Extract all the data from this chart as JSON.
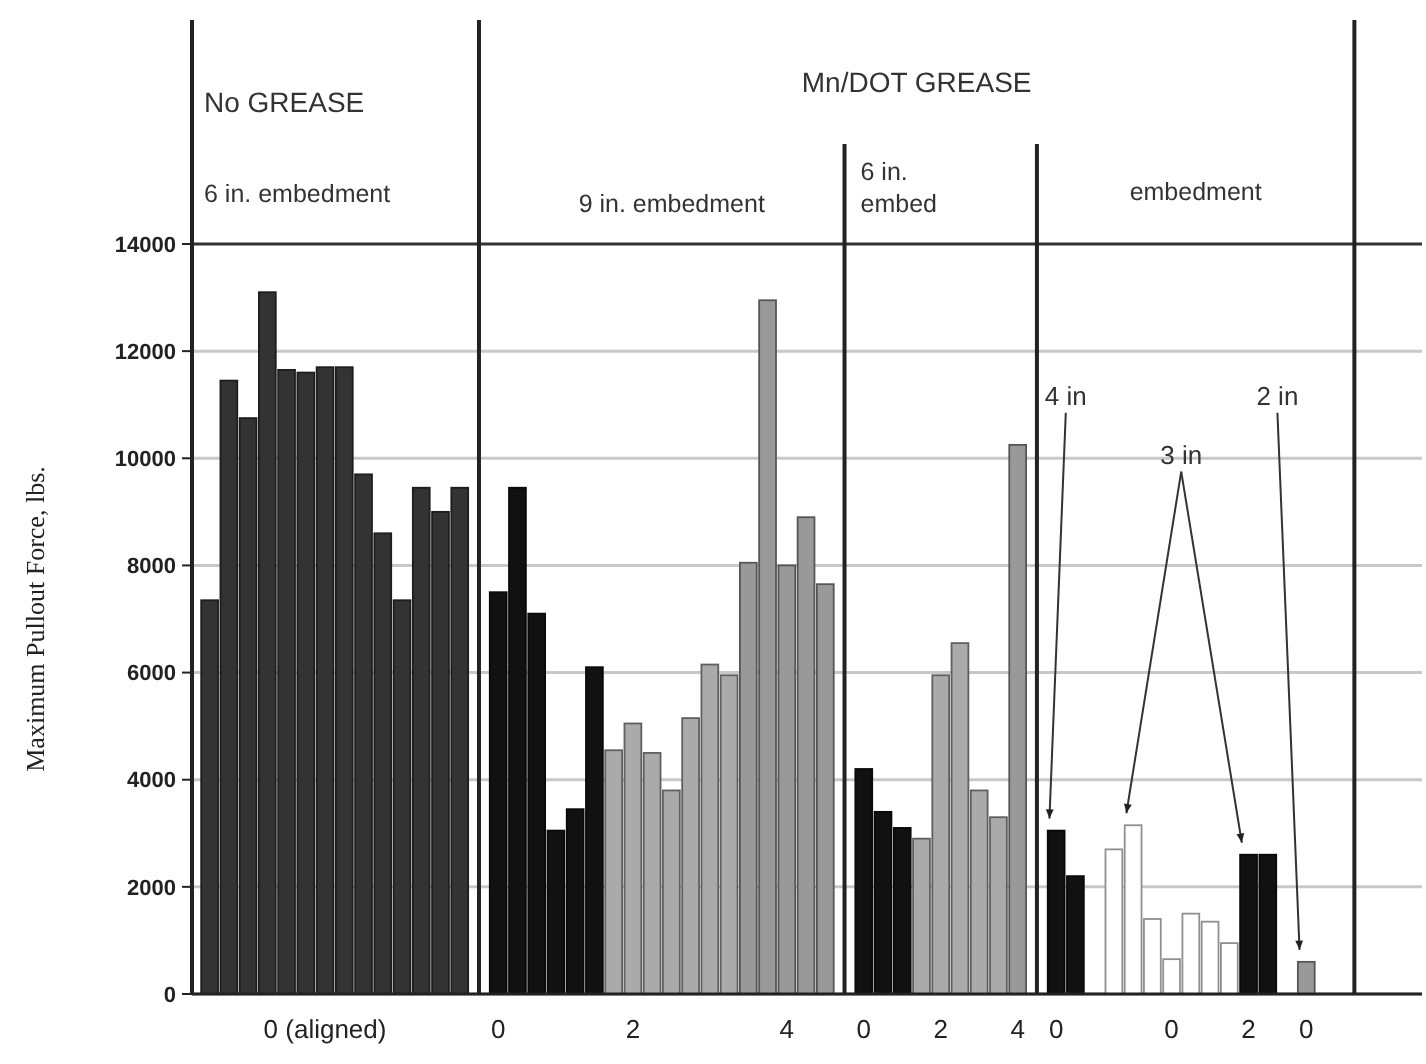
{
  "chart_data": {
    "type": "bar",
    "ylabel": "Maximum Pullout Force, lbs.",
    "categories": [
      null,
      null,
      null,
      null,
      null,
      null,
      "0 (aligned)",
      null,
      null,
      null,
      null,
      null,
      null,
      null,
      null,
      "0",
      null,
      null,
      null,
      null,
      null,
      null,
      "2",
      null,
      null,
      null,
      null,
      null,
      null,
      null,
      "4",
      null,
      null,
      null,
      "0",
      null,
      null,
      null,
      "2",
      null,
      null,
      null,
      "4",
      null,
      "0",
      null,
      null,
      null,
      null,
      null,
      "0",
      null,
      null,
      null,
      "2",
      null,
      null,
      "0"
    ],
    "values": [
      7350,
      11450,
      10750,
      13100,
      11650,
      11600,
      11700,
      11700,
      9700,
      8600,
      7350,
      9450,
      9000,
      9450,
      null,
      7500,
      9450,
      7100,
      3050,
      3450,
      6100,
      4550,
      5050,
      4500,
      3800,
      5150,
      6150,
      5950,
      8050,
      12950,
      8000,
      8900,
      7650,
      null,
      4200,
      3400,
      3100,
      2900,
      5950,
      6550,
      3800,
      3300,
      10250,
      null,
      3050,
      2200,
      null,
      2700,
      3150,
      1400,
      650,
      1500,
      1350,
      950,
      2600,
      2600,
      null,
      600
    ],
    "colors": [
      "#333333",
      "#333333",
      "#333333",
      "#333333",
      "#333333",
      "#333333",
      "#333333",
      "#333333",
      "#333333",
      "#333333",
      "#333333",
      "#333333",
      "#333333",
      "#333333",
      null,
      "#111111",
      "#111111",
      "#111111",
      "#111111",
      "#111111",
      "#111111",
      "#aaaaaa",
      "#aaaaaa",
      "#aaaaaa",
      "#aaaaaa",
      "#aaaaaa",
      "#aaaaaa",
      "#aaaaaa",
      "#999999",
      "#999999",
      "#999999",
      "#999999",
      "#999999",
      null,
      "#111111",
      "#111111",
      "#111111",
      "#aaaaaa",
      "#aaaaaa",
      "#aaaaaa",
      "#aaaaaa",
      "#aaaaaa",
      "#999999",
      null,
      "#111111",
      "#111111",
      null,
      "#ffffff",
      "#ffffff",
      "#ffffff",
      "#ffffff",
      "#ffffff",
      "#ffffff",
      "#ffffff",
      "#111111",
      "#111111",
      null,
      "#999999"
    ],
    "ylim": [
      0,
      14000
    ],
    "yticks": [
      0,
      2000,
      4000,
      6000,
      8000,
      10000,
      12000,
      14000
    ],
    "grid": "y",
    "annotations": [
      "No GREASE",
      "Mn/DOT GREASE",
      "6 in. embedment",
      "9 in. embedment",
      "6 in. embed",
      "embedment",
      "4 in",
      "3 in",
      "2 in"
    ]
  }
}
